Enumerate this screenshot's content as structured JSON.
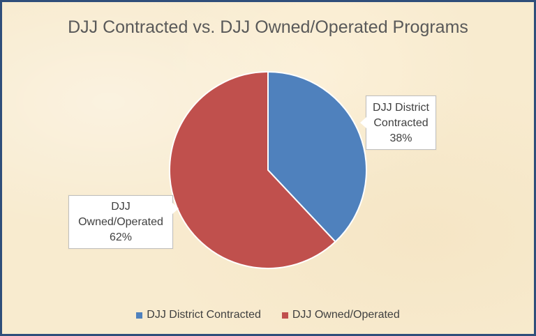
{
  "chart_data": {
    "type": "pie",
    "title": "DJJ Contracted vs. DJJ Owned/Operated Programs",
    "slices": [
      {
        "name": "DJJ District Contracted",
        "value": 38,
        "label_lines": [
          "DJJ District",
          "Contracted",
          "38%"
        ],
        "color": "#4f81bd"
      },
      {
        "name": "DJJ Owned/Operated",
        "value": 62,
        "label_lines": [
          "DJJ",
          "Owned/Operated",
          "62%"
        ],
        "color": "#c0504d"
      }
    ],
    "legend_position": "bottom"
  }
}
